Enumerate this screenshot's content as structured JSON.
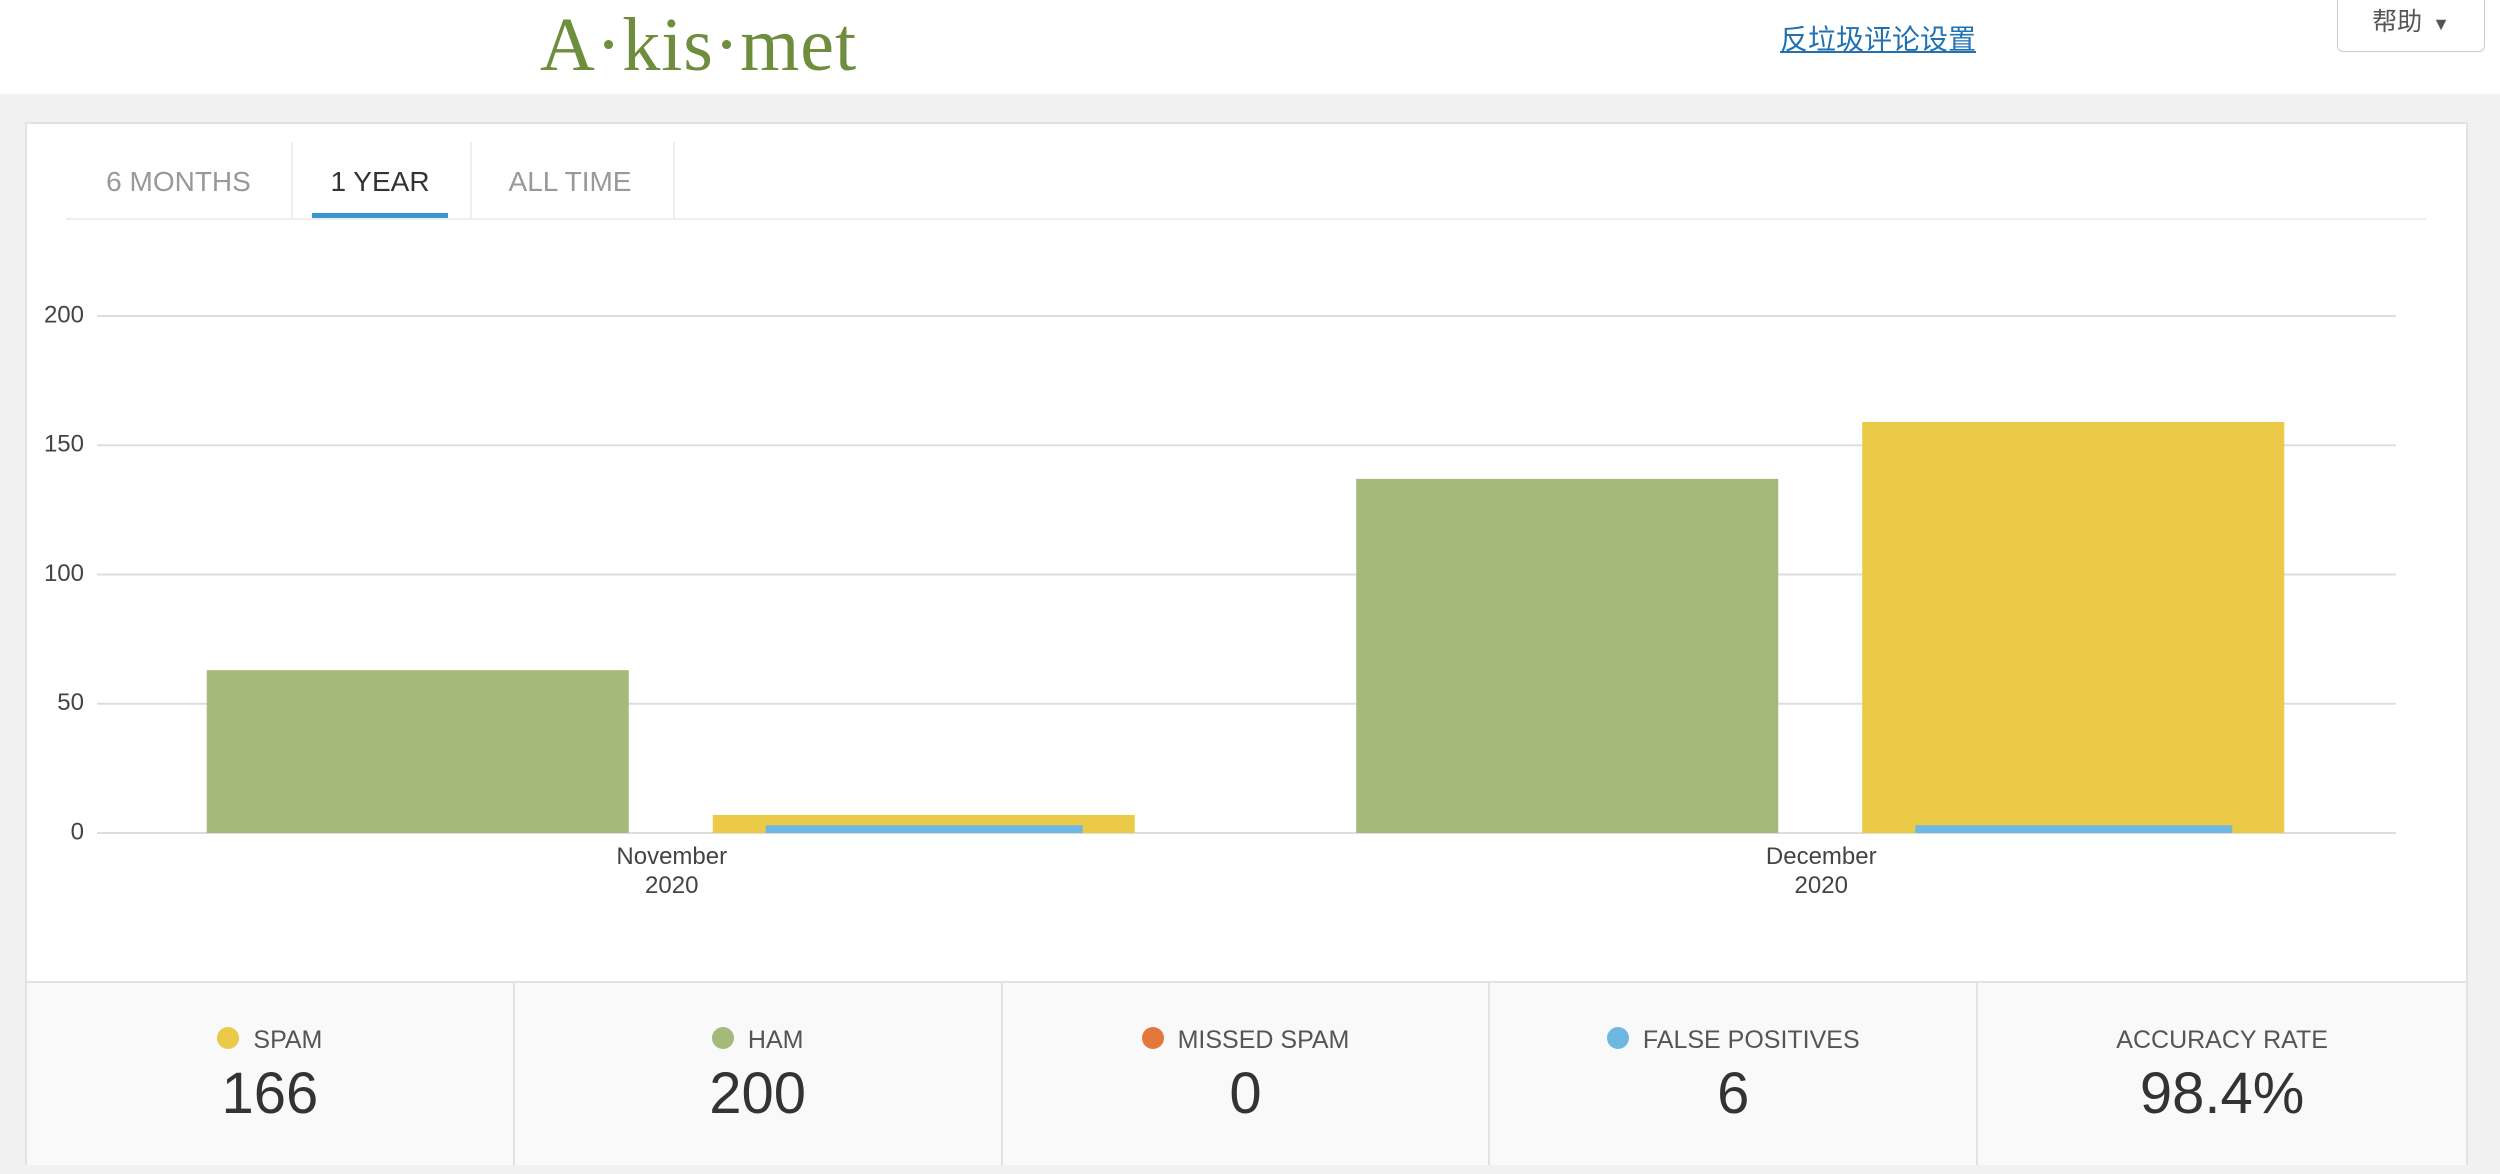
{
  "header": {
    "logo": "A·kis·met",
    "settings_link": "反垃圾评论设置",
    "help": "帮助"
  },
  "tabs": {
    "items": [
      "6 MONTHS",
      "1 YEAR",
      "ALL TIME"
    ],
    "active": 1
  },
  "chart_data": {
    "type": "bar",
    "categories": [
      "November 2020",
      "December 2020"
    ],
    "series": [
      {
        "color": "#a5b97a",
        "values": [
          63,
          137
        ]
      },
      {
        "color": "#ebca47",
        "values": [
          7,
          159
        ]
      },
      {
        "color": "#6db7e2",
        "values": [
          3,
          3
        ]
      }
    ],
    "ylim": [
      0,
      200
    ],
    "yticks": [
      0,
      50,
      100,
      150,
      200
    ],
    "grid": true
  },
  "summary": [
    {
      "label": "SPAM",
      "value": 166,
      "color": "#ebca47"
    },
    {
      "label": "HAM",
      "value": 200,
      "color": "#a5b97a"
    },
    {
      "label": "MISSED SPAM",
      "value": 0,
      "color": "#e4773a"
    },
    {
      "label": "FALSE POSITIVES",
      "value": 6,
      "color": "#6db7e2"
    },
    {
      "label": "ACCURACY RATE",
      "value": "98.4%"
    }
  ]
}
